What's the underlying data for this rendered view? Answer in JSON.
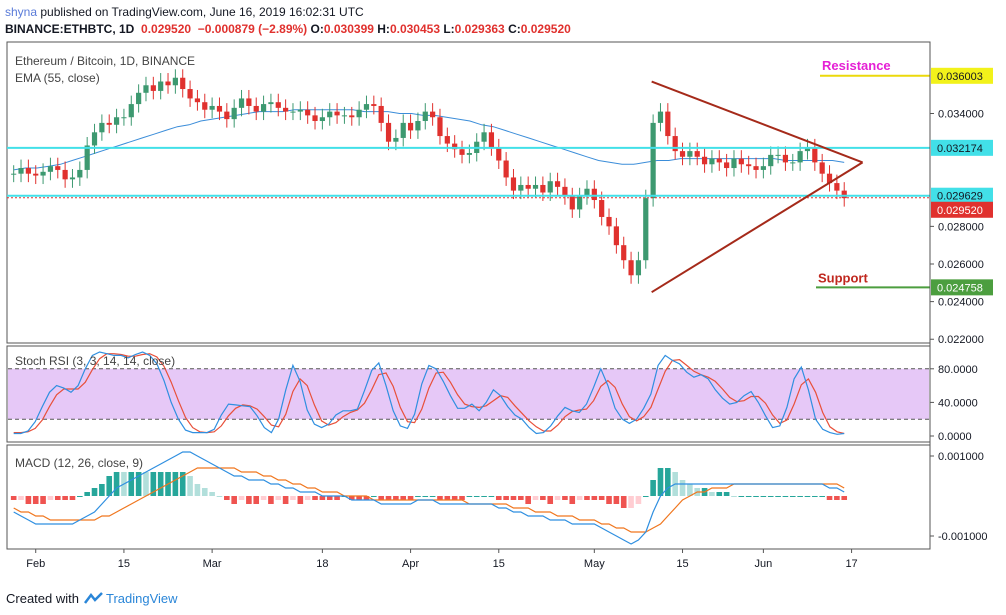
{
  "header": {
    "author": "shyna",
    "published_text": "published on TradingView.com, June 16, 2019 16:02:31 UTC",
    "symbol_line": "BINANCE:ETHBTC, 1D",
    "last": "0.029520",
    "change": "−0.000879 (−2.89%)",
    "o_label": "O:",
    "o_value": "0.030399",
    "h_label": "H:",
    "h_value": "0.030453",
    "l_label": "L:",
    "l_value": "0.029363",
    "c_label": "C:",
    "c_value": "0.029520"
  },
  "chart_data": [
    {
      "type": "candlestick",
      "title": "Ethereum / Bitcoin, 1D, BINANCE",
      "indicator_label": "EMA (55, close)",
      "ylim": [
        0.0218,
        0.0378
      ],
      "y_ticks": [
        "0.034000",
        "0.028000",
        "0.026000",
        "0.024000",
        "0.022000"
      ],
      "x_ticks": [
        "Feb",
        "15",
        "Mar",
        "18",
        "Apr",
        "15",
        "May",
        "15",
        "Jun",
        "17"
      ],
      "closes": [
        0.0308,
        0.0311,
        0.0308,
        0.0307,
        0.0309,
        0.0312,
        0.031,
        0.0305,
        0.0306,
        0.031,
        0.0323,
        0.033,
        0.0335,
        0.0334,
        0.0338,
        0.0338,
        0.0345,
        0.0351,
        0.0355,
        0.0352,
        0.0357,
        0.0355,
        0.0359,
        0.0353,
        0.0348,
        0.0346,
        0.0342,
        0.0344,
        0.0341,
        0.0337,
        0.0343,
        0.0348,
        0.0344,
        0.0341,
        0.0345,
        0.0346,
        0.0343,
        0.0341,
        0.0341,
        0.0342,
        0.0339,
        0.0336,
        0.0338,
        0.0341,
        0.0339,
        0.0339,
        0.0338,
        0.0342,
        0.0345,
        0.0344,
        0.0335,
        0.0325,
        0.0327,
        0.0335,
        0.0331,
        0.0336,
        0.0341,
        0.0338,
        0.0328,
        0.0324,
        0.0321,
        0.0318,
        0.0319,
        0.0325,
        0.033,
        0.0322,
        0.0315,
        0.0306,
        0.0299,
        0.0302,
        0.03,
        0.0302,
        0.0298,
        0.0304,
        0.0301,
        0.0296,
        0.0289,
        0.0296,
        0.03,
        0.0294,
        0.0285,
        0.028,
        0.027,
        0.0262,
        0.0254,
        0.0262,
        0.0295,
        0.0335,
        0.0341,
        0.0328,
        0.032,
        0.0317,
        0.032,
        0.0317,
        0.0313,
        0.0316,
        0.0314,
        0.0311,
        0.0316,
        0.0313,
        0.0312,
        0.031,
        0.0312,
        0.0318,
        0.0318,
        0.0314,
        0.0314,
        0.032,
        0.0322,
        0.0314,
        0.0308,
        0.0303,
        0.0299,
        0.0295
      ],
      "ema": [
        0.031,
        0.0311,
        0.0311,
        0.0312,
        0.0313,
        0.0315,
        0.0317,
        0.0319,
        0.0321,
        0.0323,
        0.0325,
        0.0327,
        0.0329,
        0.0331,
        0.0333,
        0.0334,
        0.0336,
        0.0337,
        0.0338,
        0.0339,
        0.034,
        0.0341,
        0.0341,
        0.0341,
        0.0342,
        0.0342,
        0.0342,
        0.0342,
        0.0342,
        0.0342,
        0.0341,
        0.0341,
        0.0341,
        0.034,
        0.034,
        0.0339,
        0.0339,
        0.0338,
        0.0337,
        0.0336,
        0.0334,
        0.0333,
        0.0331,
        0.0329,
        0.0327,
        0.0325,
        0.0323,
        0.0321,
        0.0319,
        0.0317,
        0.0315,
        0.0314,
        0.0313,
        0.0313,
        0.0314,
        0.0315,
        0.0315,
        0.0316,
        0.0316,
        0.0316,
        0.0316,
        0.0316,
        0.0316,
        0.0316,
        0.0316,
        0.0316,
        0.0315,
        0.0315,
        0.0315,
        0.0315,
        0.0315,
        0.0314
      ],
      "ema_start_index": 39,
      "levels": {
        "resistance": {
          "label": "Resistance",
          "value": "0.036003"
        },
        "upper_band": {
          "value": "0.032174"
        },
        "lower_band": {
          "value": "0.029629"
        },
        "last_price": {
          "value": "0.029520"
        },
        "support": {
          "label": "Support",
          "value": "0.024758"
        }
      }
    },
    {
      "type": "line",
      "title": "Stoch RSI (3, 3, 14, 14, close)",
      "ylim": [
        0,
        100
      ],
      "y_ticks": [
        "80.0000",
        "40.0000",
        "0.0000"
      ],
      "band": [
        20,
        80
      ],
      "k": [
        3,
        3,
        6,
        17,
        35,
        52,
        60,
        57,
        52,
        60,
        80,
        96,
        100,
        98,
        96,
        96,
        93,
        97,
        100,
        96,
        86,
        66,
        40,
        20,
        7,
        4,
        4,
        4,
        8,
        25,
        38,
        37,
        36,
        35,
        24,
        10,
        4,
        20,
        55,
        84,
        65,
        31,
        14,
        10,
        14,
        25,
        30,
        30,
        32,
        54,
        78,
        87,
        60,
        30,
        12,
        9,
        26,
        62,
        84,
        80,
        65,
        48,
        33,
        33,
        38,
        30,
        40,
        55,
        48,
        35,
        25,
        20,
        10,
        3,
        4,
        12,
        24,
        34,
        30,
        28,
        38,
        58,
        80,
        60,
        33,
        20,
        15,
        20,
        33,
        50,
        84,
        96,
        90,
        86,
        76,
        70,
        73,
        68,
        55,
        45,
        38,
        40,
        48,
        53,
        40,
        24,
        10,
        12,
        34,
        68,
        82,
        55,
        20,
        8,
        4,
        2,
        3
      ],
      "d": [
        4,
        4,
        5,
        9,
        19,
        35,
        49,
        56,
        56,
        56,
        64,
        79,
        92,
        98,
        98,
        97,
        95,
        95,
        97,
        98,
        94,
        83,
        64,
        42,
        22,
        10,
        5,
        4,
        5,
        12,
        24,
        33,
        37,
        36,
        32,
        23,
        13,
        11,
        26,
        53,
        68,
        60,
        37,
        18,
        13,
        16,
        23,
        28,
        31,
        39,
        55,
        73,
        75,
        59,
        34,
        17,
        16,
        32,
        57,
        75,
        76,
        64,
        49,
        38,
        35,
        34,
        36,
        42,
        48,
        46,
        36,
        27,
        18,
        11,
        6,
        6,
        13,
        23,
        29,
        31,
        32,
        42,
        59,
        66,
        58,
        38,
        23,
        18,
        23,
        34,
        56,
        77,
        90,
        91,
        84,
        77,
        73,
        70,
        65,
        56,
        46,
        41,
        42,
        47,
        47,
        39,
        25,
        15,
        19,
        38,
        61,
        68,
        52,
        28,
        11,
        5,
        3
      ]
    },
    {
      "type": "line",
      "title": "MACD (12, 26, close, 9)",
      "ylim": [
        -0.00125,
        0.0012
      ],
      "y_ticks": [
        "0.001000",
        "-0.001000"
      ],
      "macd": [
        -0.0004,
        -0.0005,
        -0.0006,
        -0.0007,
        -0.0007,
        -0.0007,
        -0.0007,
        -0.0007,
        -0.0007,
        -0.0006,
        -0.0005,
        -0.0004,
        -0.0002,
        0.0,
        0.0002,
        0.0003,
        0.0004,
        0.0005,
        0.0006,
        0.0007,
        0.0008,
        0.0009,
        0.001,
        0.0011,
        0.0011,
        0.001,
        0.0009,
        0.0008,
        0.0007,
        0.0006,
        0.0005,
        0.0005,
        0.0004,
        0.0004,
        0.0004,
        0.0003,
        0.0003,
        0.0002,
        0.0002,
        0.0001,
        0.0001,
        0.0001,
        0.0,
        0.0,
        0.0,
        0.0,
        -0.0001,
        -0.0001,
        -0.0001,
        -0.0001,
        -0.0002,
        -0.0002,
        -0.0002,
        -0.0002,
        -0.0002,
        -0.0001,
        -0.0001,
        -0.0001,
        -0.0002,
        -0.0002,
        -0.0002,
        -0.0002,
        -0.0002,
        -0.0002,
        -0.0002,
        -0.0002,
        -0.0003,
        -0.0003,
        -0.0004,
        -0.0004,
        -0.0005,
        -0.0005,
        -0.0005,
        -0.0006,
        -0.0006,
        -0.0006,
        -0.0007,
        -0.0007,
        -0.0007,
        -0.0007,
        -0.0008,
        -0.0009,
        -0.001,
        -0.0011,
        -0.0012,
        -0.0011,
        -0.0009,
        -0.0004,
        0.0,
        0.0002,
        0.0003,
        0.0003,
        0.0003,
        0.0003,
        0.0003,
        0.0003,
        0.0003,
        0.0003,
        0.0003,
        0.0003,
        0.0003,
        0.0003,
        0.0003,
        0.0003,
        0.0003,
        0.0003,
        0.0003,
        0.0003,
        0.0003,
        0.0003,
        0.0003,
        0.0002,
        0.0002,
        0.0001
      ],
      "signal": [
        -0.0003,
        -0.0004,
        -0.0004,
        -0.0005,
        -0.0005,
        -0.0006,
        -0.0006,
        -0.0006,
        -0.0006,
        -0.0006,
        -0.0006,
        -0.0006,
        -0.0005,
        -0.0005,
        -0.0004,
        -0.0003,
        -0.0002,
        -0.0001,
        0.0,
        0.0001,
        0.0002,
        0.0003,
        0.0004,
        0.0005,
        0.0006,
        0.0007,
        0.0007,
        0.0007,
        0.0007,
        0.0007,
        0.0007,
        0.0006,
        0.0006,
        0.0006,
        0.0005,
        0.0005,
        0.0004,
        0.0004,
        0.0003,
        0.0003,
        0.0002,
        0.0002,
        0.0001,
        0.0001,
        0.0001,
        0.0,
        0.0,
        0.0,
        0.0,
        -0.0001,
        -0.0001,
        -0.0001,
        -0.0001,
        -0.0001,
        -0.0001,
        -0.0001,
        -0.0001,
        -0.0001,
        -0.0001,
        -0.0001,
        -0.0001,
        -0.0001,
        -0.0002,
        -0.0002,
        -0.0002,
        -0.0002,
        -0.0002,
        -0.0002,
        -0.0003,
        -0.0003,
        -0.0003,
        -0.0004,
        -0.0004,
        -0.0004,
        -0.0005,
        -0.0005,
        -0.0005,
        -0.0006,
        -0.0006,
        -0.0006,
        -0.0007,
        -0.0007,
        -0.0008,
        -0.0008,
        -0.0009,
        -0.0009,
        -0.0009,
        -0.0008,
        -0.0007,
        -0.0005,
        -0.0003,
        -0.0001,
        0.0,
        0.0001,
        0.0001,
        0.0002,
        0.0002,
        0.0002,
        0.0003,
        0.0003,
        0.0003,
        0.0003,
        0.0003,
        0.0003,
        0.0003,
        0.0003,
        0.0003,
        0.0003,
        0.0003,
        0.0003,
        0.0003,
        0.0003,
        0.0003,
        0.0002
      ]
    }
  ],
  "footer": {
    "created_with": "Created with",
    "brand": "TradingView"
  }
}
